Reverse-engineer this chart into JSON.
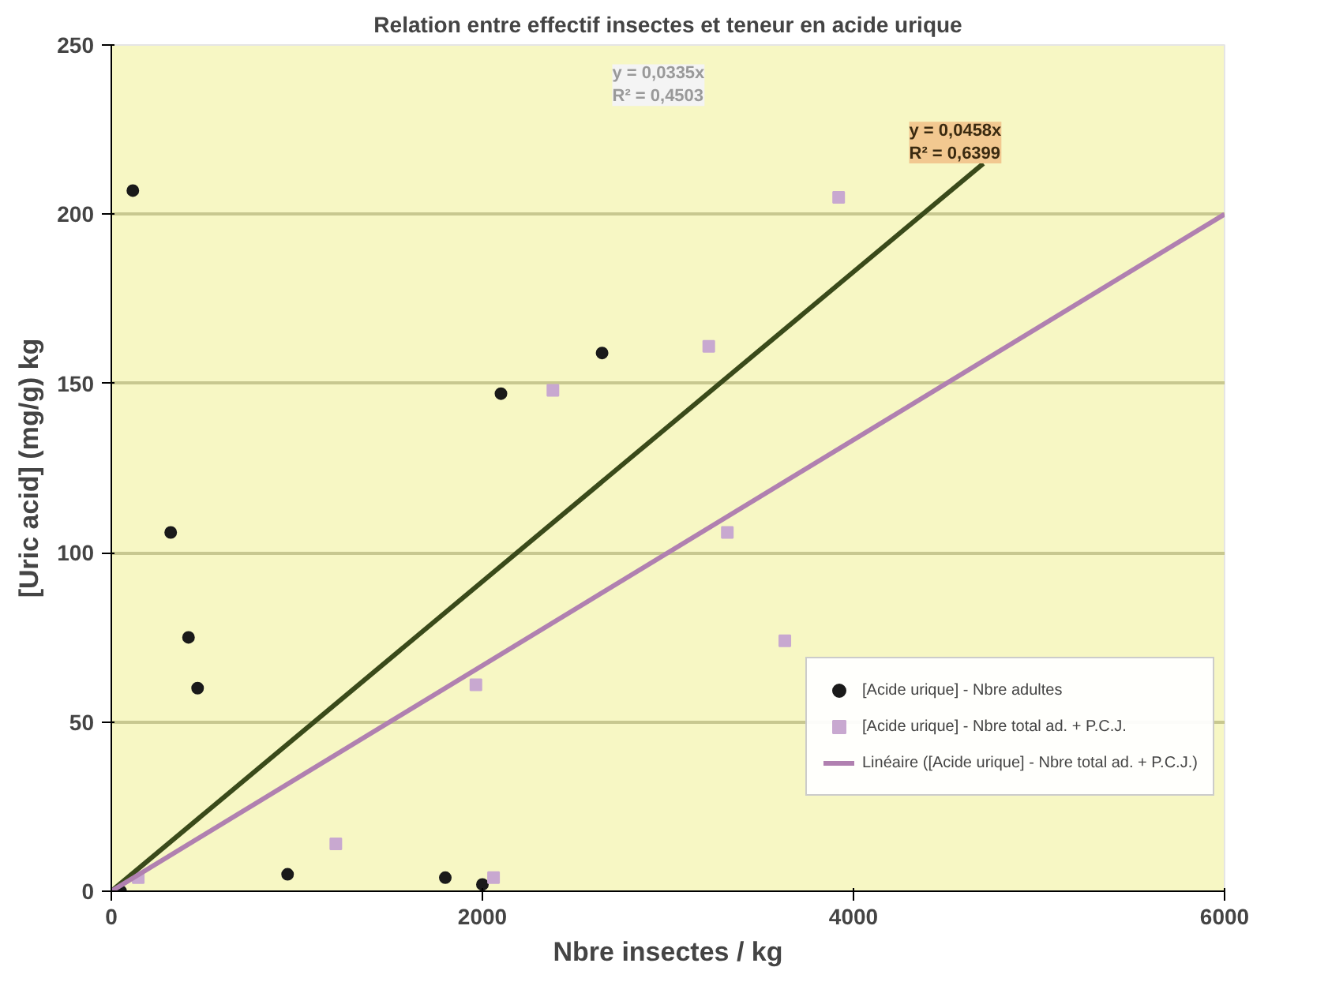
{
  "chart_data": {
    "type": "scatter",
    "title": "Relation entre effectif insectes et teneur en acide urique",
    "xlabel": "Nbre insectes / kg",
    "ylabel": "[Uric acid] (mg/g) kg",
    "xlim": [
      0,
      6000
    ],
    "ylim": [
      0,
      250
    ],
    "xticks": [
      0,
      2000,
      4000,
      6000
    ],
    "yticks": [
      0,
      50,
      100,
      150,
      200,
      250
    ],
    "grid": "y",
    "legend": "right",
    "series": [
      {
        "name": "[Acide urique] - Nbre adultes",
        "color": "#1a1a1a",
        "marker": "circle",
        "x": [
          50,
          116,
          320,
          416,
          465,
          950,
          1800,
          2000,
          2100,
          2645
        ],
        "values": [
          0,
          207,
          106,
          75,
          60,
          5,
          4,
          2,
          147,
          159
        ]
      },
      {
        "name": "[Acide urique] - Nbre total ad. + P.C.J.",
        "color": "#c8a8d0",
        "marker": "square",
        "x": [
          145,
          1210,
          1965,
          2060,
          2380,
          3220,
          3320,
          3630,
          3920
        ],
        "values": [
          4,
          14,
          61,
          4,
          148,
          161,
          106,
          74,
          205
        ]
      },
      {
        "type": "line",
        "color": "#3a4a1a",
        "x": [
          0,
          4700
        ],
        "values": [
          0,
          215
        ]
      },
      {
        "name": "Linéaire ([Acide urique] - Nbre total ad. + P.C.J.)",
        "type": "line",
        "color": "#b080b0",
        "x": [
          0,
          6000
        ],
        "values": [
          0,
          200
        ]
      }
    ],
    "annotations": [
      "y = 0,0458x\nR² = 0,6399",
      "y = 0,0335x\nR² = 0,4503"
    ]
  }
}
